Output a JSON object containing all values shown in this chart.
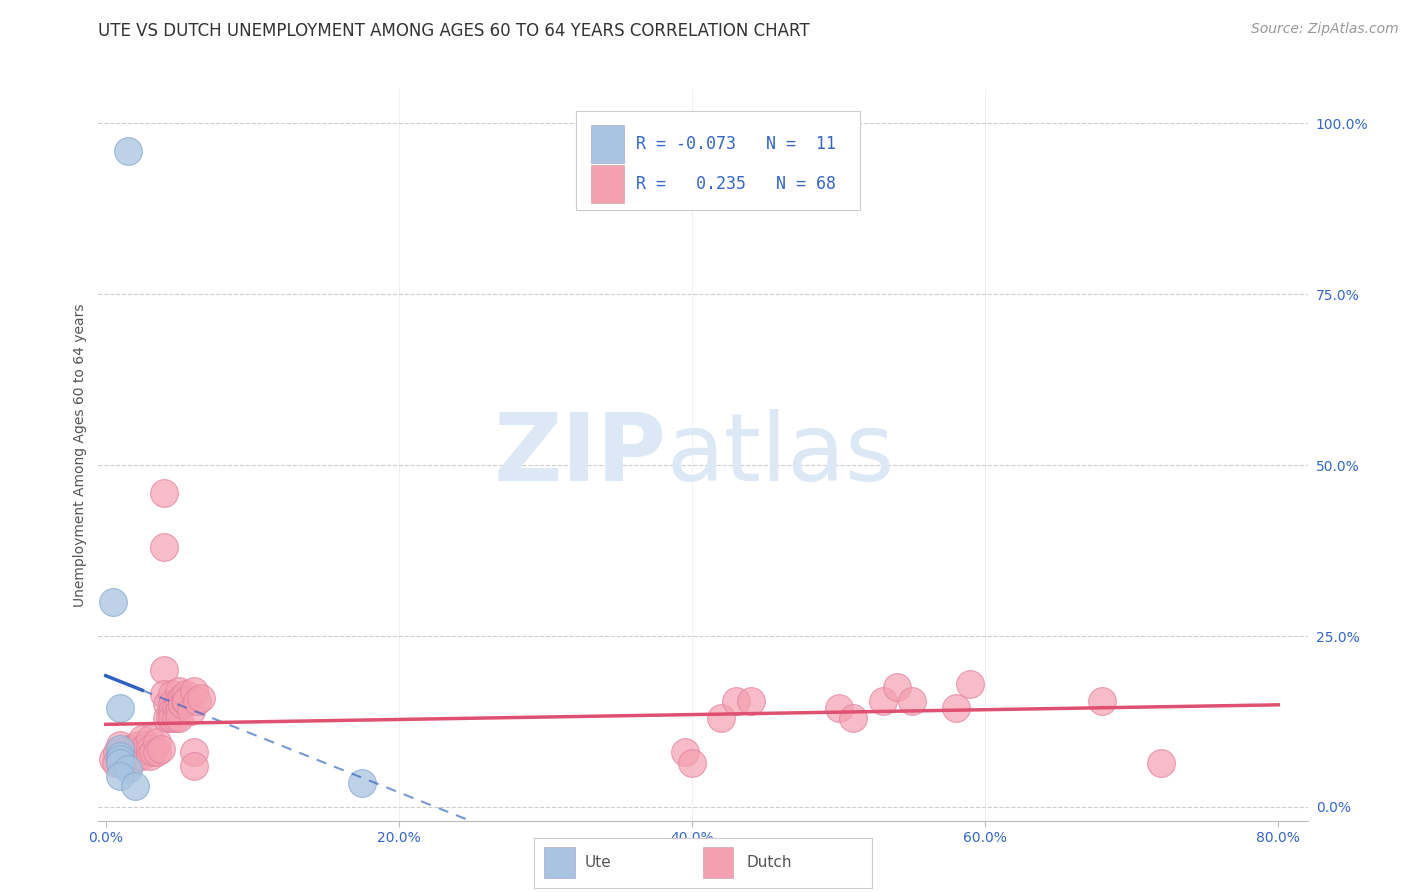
{
  "title": "UTE VS DUTCH UNEMPLOYMENT AMONG AGES 60 TO 64 YEARS CORRELATION CHART",
  "source": "Source: ZipAtlas.com",
  "ylabel": "Unemployment Among Ages 60 to 64 years",
  "xlim": [
    -0.005,
    0.82
  ],
  "ylim": [
    -0.02,
    1.05
  ],
  "xticks": [
    0.0,
    0.2,
    0.4,
    0.6,
    0.8
  ],
  "xtick_labels": [
    "0.0%",
    "20.0%",
    "40.0%",
    "60.0%",
    "80.0%"
  ],
  "yticks_right": [
    0.0,
    0.25,
    0.5,
    0.75,
    1.0
  ],
  "ytick_labels_right": [
    "0.0%",
    "25.0%",
    "50.0%",
    "75.0%",
    "100.0%"
  ],
  "background_color": "#ffffff",
  "grid_color": "#c8c8c8",
  "ute_color": "#a8c4e0",
  "dutch_color": "#f4a0b0",
  "ute_edge_color": "#88aad0",
  "dutch_edge_color": "#e080a0",
  "ute_line_color": "#3060c0",
  "dutch_line_color": "#e05070",
  "legend_color": "#3366cc",
  "watermark_zip": "ZIP",
  "watermark_atlas": "atlas",
  "watermark_color": "#dce8f5",
  "ute_points": [
    [
      0.015,
      0.96
    ],
    [
      0.005,
      0.3
    ],
    [
      0.01,
      0.145
    ],
    [
      0.01,
      0.085
    ],
    [
      0.01,
      0.075
    ],
    [
      0.01,
      0.07
    ],
    [
      0.01,
      0.065
    ],
    [
      0.015,
      0.055
    ],
    [
      0.01,
      0.045
    ],
    [
      0.175,
      0.035
    ],
    [
      0.02,
      0.03
    ]
  ],
  "dutch_points": [
    [
      0.005,
      0.07
    ],
    [
      0.007,
      0.065
    ],
    [
      0.008,
      0.08
    ],
    [
      0.01,
      0.09
    ],
    [
      0.01,
      0.075
    ],
    [
      0.012,
      0.07
    ],
    [
      0.012,
      0.065
    ],
    [
      0.015,
      0.06
    ],
    [
      0.015,
      0.075
    ],
    [
      0.015,
      0.085
    ],
    [
      0.018,
      0.07
    ],
    [
      0.018,
      0.085
    ],
    [
      0.02,
      0.08
    ],
    [
      0.02,
      0.075
    ],
    [
      0.022,
      0.09
    ],
    [
      0.022,
      0.075
    ],
    [
      0.025,
      0.1
    ],
    [
      0.025,
      0.085
    ],
    [
      0.025,
      0.075
    ],
    [
      0.028,
      0.09
    ],
    [
      0.03,
      0.1
    ],
    [
      0.03,
      0.085
    ],
    [
      0.03,
      0.075
    ],
    [
      0.032,
      0.08
    ],
    [
      0.035,
      0.095
    ],
    [
      0.035,
      0.08
    ],
    [
      0.038,
      0.085
    ],
    [
      0.04,
      0.46
    ],
    [
      0.04,
      0.38
    ],
    [
      0.04,
      0.2
    ],
    [
      0.04,
      0.165
    ],
    [
      0.042,
      0.15
    ],
    [
      0.042,
      0.13
    ],
    [
      0.044,
      0.13
    ],
    [
      0.045,
      0.165
    ],
    [
      0.045,
      0.15
    ],
    [
      0.045,
      0.14
    ],
    [
      0.045,
      0.13
    ],
    [
      0.048,
      0.145
    ],
    [
      0.048,
      0.13
    ],
    [
      0.05,
      0.17
    ],
    [
      0.05,
      0.155
    ],
    [
      0.05,
      0.14
    ],
    [
      0.05,
      0.13
    ],
    [
      0.052,
      0.16
    ],
    [
      0.052,
      0.15
    ],
    [
      0.054,
      0.155
    ],
    [
      0.055,
      0.165
    ],
    [
      0.055,
      0.155
    ],
    [
      0.058,
      0.14
    ],
    [
      0.06,
      0.17
    ],
    [
      0.06,
      0.08
    ],
    [
      0.06,
      0.06
    ],
    [
      0.062,
      0.155
    ],
    [
      0.065,
      0.16
    ],
    [
      0.395,
      0.08
    ],
    [
      0.4,
      0.065
    ],
    [
      0.42,
      0.13
    ],
    [
      0.43,
      0.155
    ],
    [
      0.44,
      0.155
    ],
    [
      0.5,
      0.145
    ],
    [
      0.51,
      0.13
    ],
    [
      0.53,
      0.155
    ],
    [
      0.54,
      0.175
    ],
    [
      0.55,
      0.155
    ],
    [
      0.58,
      0.145
    ],
    [
      0.59,
      0.18
    ],
    [
      0.68,
      0.155
    ],
    [
      0.72,
      0.065
    ]
  ],
  "title_fontsize": 12,
  "axis_label_fontsize": 10,
  "tick_fontsize": 10,
  "legend_fontsize": 12,
  "source_fontsize": 10
}
